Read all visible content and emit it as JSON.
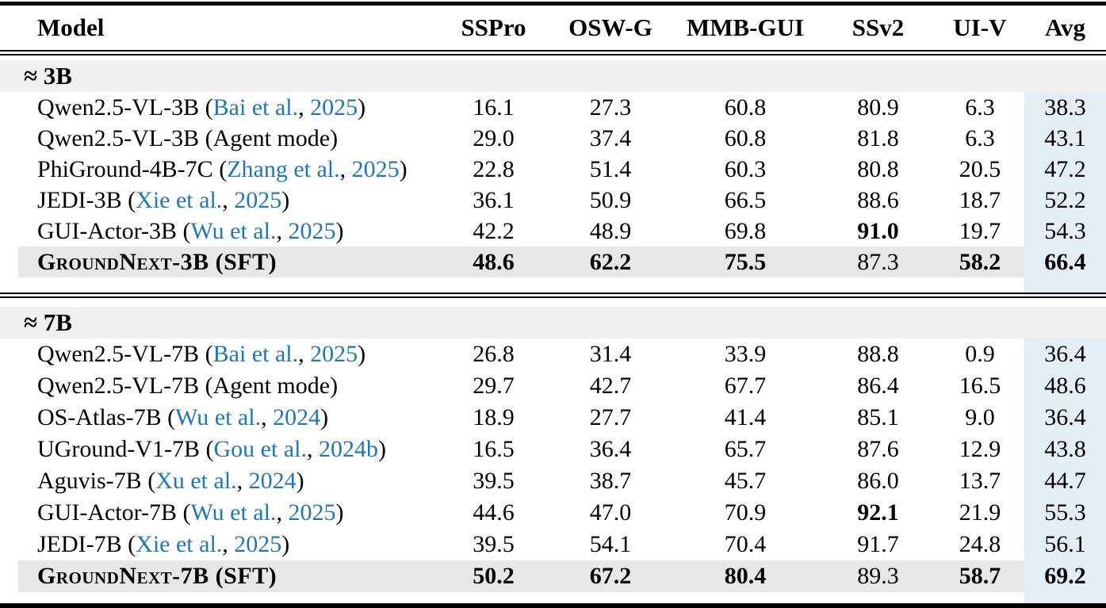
{
  "columns": [
    "Model",
    "SSPro",
    "OSW-G",
    "MMB-GUI",
    "SSv2",
    "UI-V",
    "Avg"
  ],
  "colors": {
    "citation_link": "#1f78b4",
    "avg_column_band": "#e3eef5",
    "section_band": "#f0f0f0",
    "highlight_row": "#e7e7e7"
  },
  "sections": [
    {
      "label": "≈ 3B",
      "rows": [
        {
          "name": "Qwen2.5-VL-3B",
          "open": " (",
          "author": "Bai et al.",
          "sep": ", ",
          "year": "2025",
          "close": ")",
          "values": [
            "16.1",
            "27.3",
            "60.8",
            "80.9",
            "6.3",
            "38.3"
          ]
        },
        {
          "name": "Qwen2.5-VL-3B (Agent mode)",
          "values": [
            "29.0",
            "37.4",
            "60.8",
            "81.8",
            "6.3",
            "43.1"
          ]
        },
        {
          "name": "PhiGround-4B-7C",
          "open": " (",
          "author": "Zhang et al.",
          "sep": ", ",
          "year": "2025",
          "close": ")",
          "values": [
            "22.8",
            "51.4",
            "60.3",
            "80.8",
            "20.5",
            "47.2"
          ]
        },
        {
          "name": "JEDI-3B",
          "open": " (",
          "author": "Xie et al.",
          "sep": ", ",
          "year": "2025",
          "close": ")",
          "values": [
            "36.1",
            "50.9",
            "66.5",
            "88.6",
            "18.7",
            "52.2"
          ]
        },
        {
          "name": "GUI-Actor-3B",
          "open": " (",
          "author": "Wu et al.",
          "sep": ", ",
          "year": "2025",
          "close": ")",
          "values": [
            "42.2",
            "48.9",
            "69.8",
            "91.0",
            "19.7",
            "54.3"
          ]
        },
        {
          "name": "GroundNext-3B (SFT)",
          "values": [
            "48.6",
            "62.2",
            "75.5",
            "87.3",
            "58.2",
            "66.4"
          ]
        }
      ]
    },
    {
      "label": "≈ 7B",
      "rows": [
        {
          "name": "Qwen2.5-VL-7B",
          "open": " (",
          "author": "Bai et al.",
          "sep": ", ",
          "year": "2025",
          "close": ")",
          "values": [
            "26.8",
            "31.4",
            "33.9",
            "88.8",
            "0.9",
            "36.4"
          ]
        },
        {
          "name": "Qwen2.5-VL-7B (Agent mode)",
          "values": [
            "29.7",
            "42.7",
            "67.7",
            "86.4",
            "16.5",
            "48.6"
          ]
        },
        {
          "name": "OS-Atlas-7B",
          "open": " (",
          "author": "Wu et al.",
          "sep": ", ",
          "year": "2024",
          "close": ")",
          "values": [
            "18.9",
            "27.7",
            "41.4",
            "85.1",
            "9.0",
            "36.4"
          ]
        },
        {
          "name": "UGround-V1-7B",
          "open": " (",
          "author": "Gou et al.",
          "sep": ", ",
          "year": "2024b",
          "close": ")",
          "values": [
            "16.5",
            "36.4",
            "65.7",
            "87.6",
            "12.9",
            "43.8"
          ]
        },
        {
          "name": "Aguvis-7B",
          "open": " (",
          "author": "Xu et al.",
          "sep": ", ",
          "year": "2024",
          "close": ")",
          "values": [
            "39.5",
            "38.7",
            "45.7",
            "86.0",
            "13.7",
            "44.7"
          ]
        },
        {
          "name": "GUI-Actor-7B",
          "open": " (",
          "author": "Wu et al.",
          "sep": ", ",
          "year": "2025",
          "close": ")",
          "values": [
            "44.6",
            "47.0",
            "70.9",
            "92.1",
            "21.9",
            "55.3"
          ]
        },
        {
          "name": "JEDI-7B",
          "open": " (",
          "author": "Xie et al.",
          "sep": ", ",
          "year": "2025",
          "close": ")",
          "values": [
            "39.5",
            "54.1",
            "70.4",
            "91.7",
            "24.8",
            "56.1"
          ]
        },
        {
          "name": "GroundNext-7B (SFT)",
          "values": [
            "50.2",
            "67.2",
            "80.4",
            "89.3",
            "58.7",
            "69.2"
          ]
        }
      ]
    }
  ]
}
